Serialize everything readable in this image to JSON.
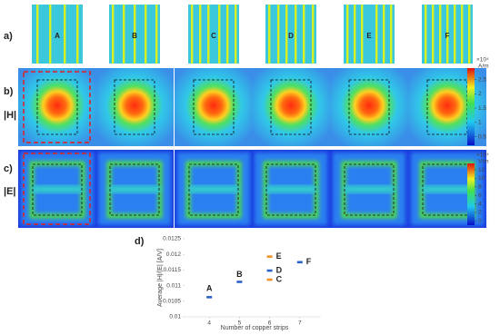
{
  "panel_labels": [
    "a)",
    "b)",
    "c)",
    "d)"
  ],
  "row_labels": [
    "|H|",
    "|E|"
  ],
  "columns": [
    "A",
    "B",
    "C",
    "D",
    "E",
    "F"
  ],
  "h_colorbar": {
    "scale": "×10⁴",
    "unit": "A/m",
    "lim": [
      0.2,
      2.9
    ],
    "ticks": [
      2.5,
      2,
      1.5,
      1,
      0.5
    ]
  },
  "e_colorbar": {
    "scale": "×10⁴",
    "unit": "V/m",
    "lim": [
      -1,
      13.5
    ],
    "ticks": [
      12,
      10,
      8,
      6,
      4,
      2,
      0
    ]
  },
  "chart_data": {
    "type": "scatter",
    "x_label": "Number of copper strips",
    "y_label": "Average |H|/|E| [A/V]",
    "x": [
      4,
      5,
      6,
      6,
      6,
      7
    ],
    "values": [
      0.01063,
      0.01112,
      0.01119,
      0.01148,
      0.01193,
      0.01175
    ],
    "point_labels": [
      "A",
      "B",
      "C",
      "D",
      "E",
      "F"
    ],
    "colors": [
      "#2a63c8",
      "#2a63c8",
      "#f0902a",
      "#2a63c8",
      "#f0902a",
      "#2a63c8"
    ],
    "xlim": [
      3,
      8
    ],
    "ylim": [
      0.01,
      0.0125
    ],
    "xticks": [
      4,
      5,
      6,
      7
    ],
    "yticks": [
      0.01,
      0.0105,
      0.011,
      0.0115,
      0.012,
      0.0125
    ]
  }
}
